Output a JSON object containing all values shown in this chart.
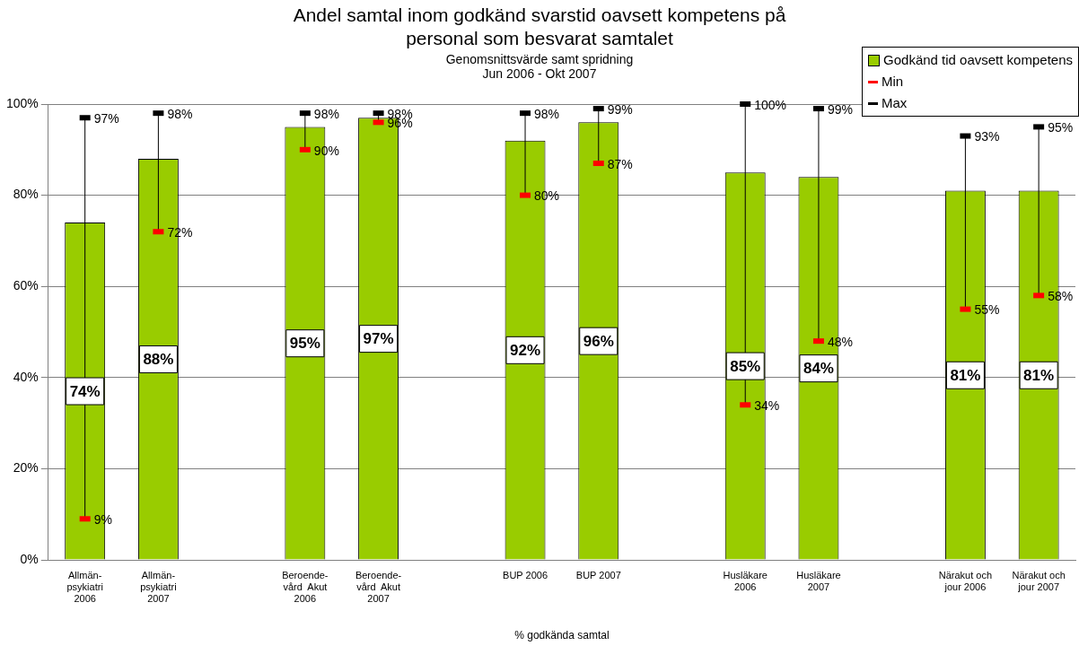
{
  "chart_data": {
    "type": "bar",
    "title": "Andel samtal inom godkänd svarstid oavsett kompetens på personal som besvarat samtalet",
    "subtitle": "Genomsnittsvärde samt spridning\nJun 2006 - Okt 2007",
    "xlabel": "% godkända samtal",
    "categories": [
      "Allmän-\npsykiatri\n2006",
      "Allmän-\npsykiatri\n2007",
      null,
      "Beroende-\nvård  Akut\n2006",
      "Beroende-\nvård  Akut\n2007",
      null,
      "BUP 2006",
      "BUP 2007",
      null,
      "Husläkare\n2006",
      "Husläkare\n2007",
      null,
      "Närakut och\njour 2006",
      "Närakut och\njour 2007"
    ],
    "series": [
      {
        "name": "Godkänd tid oavsett kompetens",
        "color": "#99cc00",
        "values": [
          74,
          88,
          null,
          95,
          97,
          null,
          92,
          96,
          null,
          85,
          84,
          null,
          81,
          81
        ],
        "value_labels": [
          "74%",
          "88%",
          null,
          "95%",
          "97%",
          null,
          "92%",
          "96%",
          null,
          "85%",
          "84%",
          null,
          "81%",
          "81%"
        ]
      },
      {
        "name": "Min",
        "type": "scatter",
        "color": "#ff0000",
        "values": [
          9,
          72,
          null,
          90,
          96,
          null,
          80,
          87,
          null,
          34,
          48,
          null,
          55,
          58
        ],
        "value_labels": [
          "9%",
          "72%",
          null,
          "90%",
          "96%",
          null,
          "80%",
          "87%",
          null,
          "34%",
          "48%",
          null,
          "55%",
          "58%"
        ]
      },
      {
        "name": "Max",
        "type": "scatter",
        "color": "#000000",
        "values": [
          97,
          98,
          null,
          98,
          98,
          null,
          98,
          99,
          null,
          100,
          99,
          null,
          93,
          95
        ],
        "value_labels": [
          "97%",
          "98%",
          null,
          "98%",
          "98%",
          null,
          "98%",
          "99%",
          null,
          "100%",
          "99%",
          null,
          "93%",
          "95%"
        ]
      }
    ],
    "ylim": [
      0,
      100
    ],
    "yticks": [
      {
        "value": 0,
        "label": "0%"
      },
      {
        "value": 20,
        "label": "20%"
      },
      {
        "value": 40,
        "label": "40%"
      },
      {
        "value": 60,
        "label": "60%"
      },
      {
        "value": 80,
        "label": "80%"
      },
      {
        "value": 100,
        "label": "100%"
      }
    ],
    "grid": "y",
    "legend": "top right"
  }
}
